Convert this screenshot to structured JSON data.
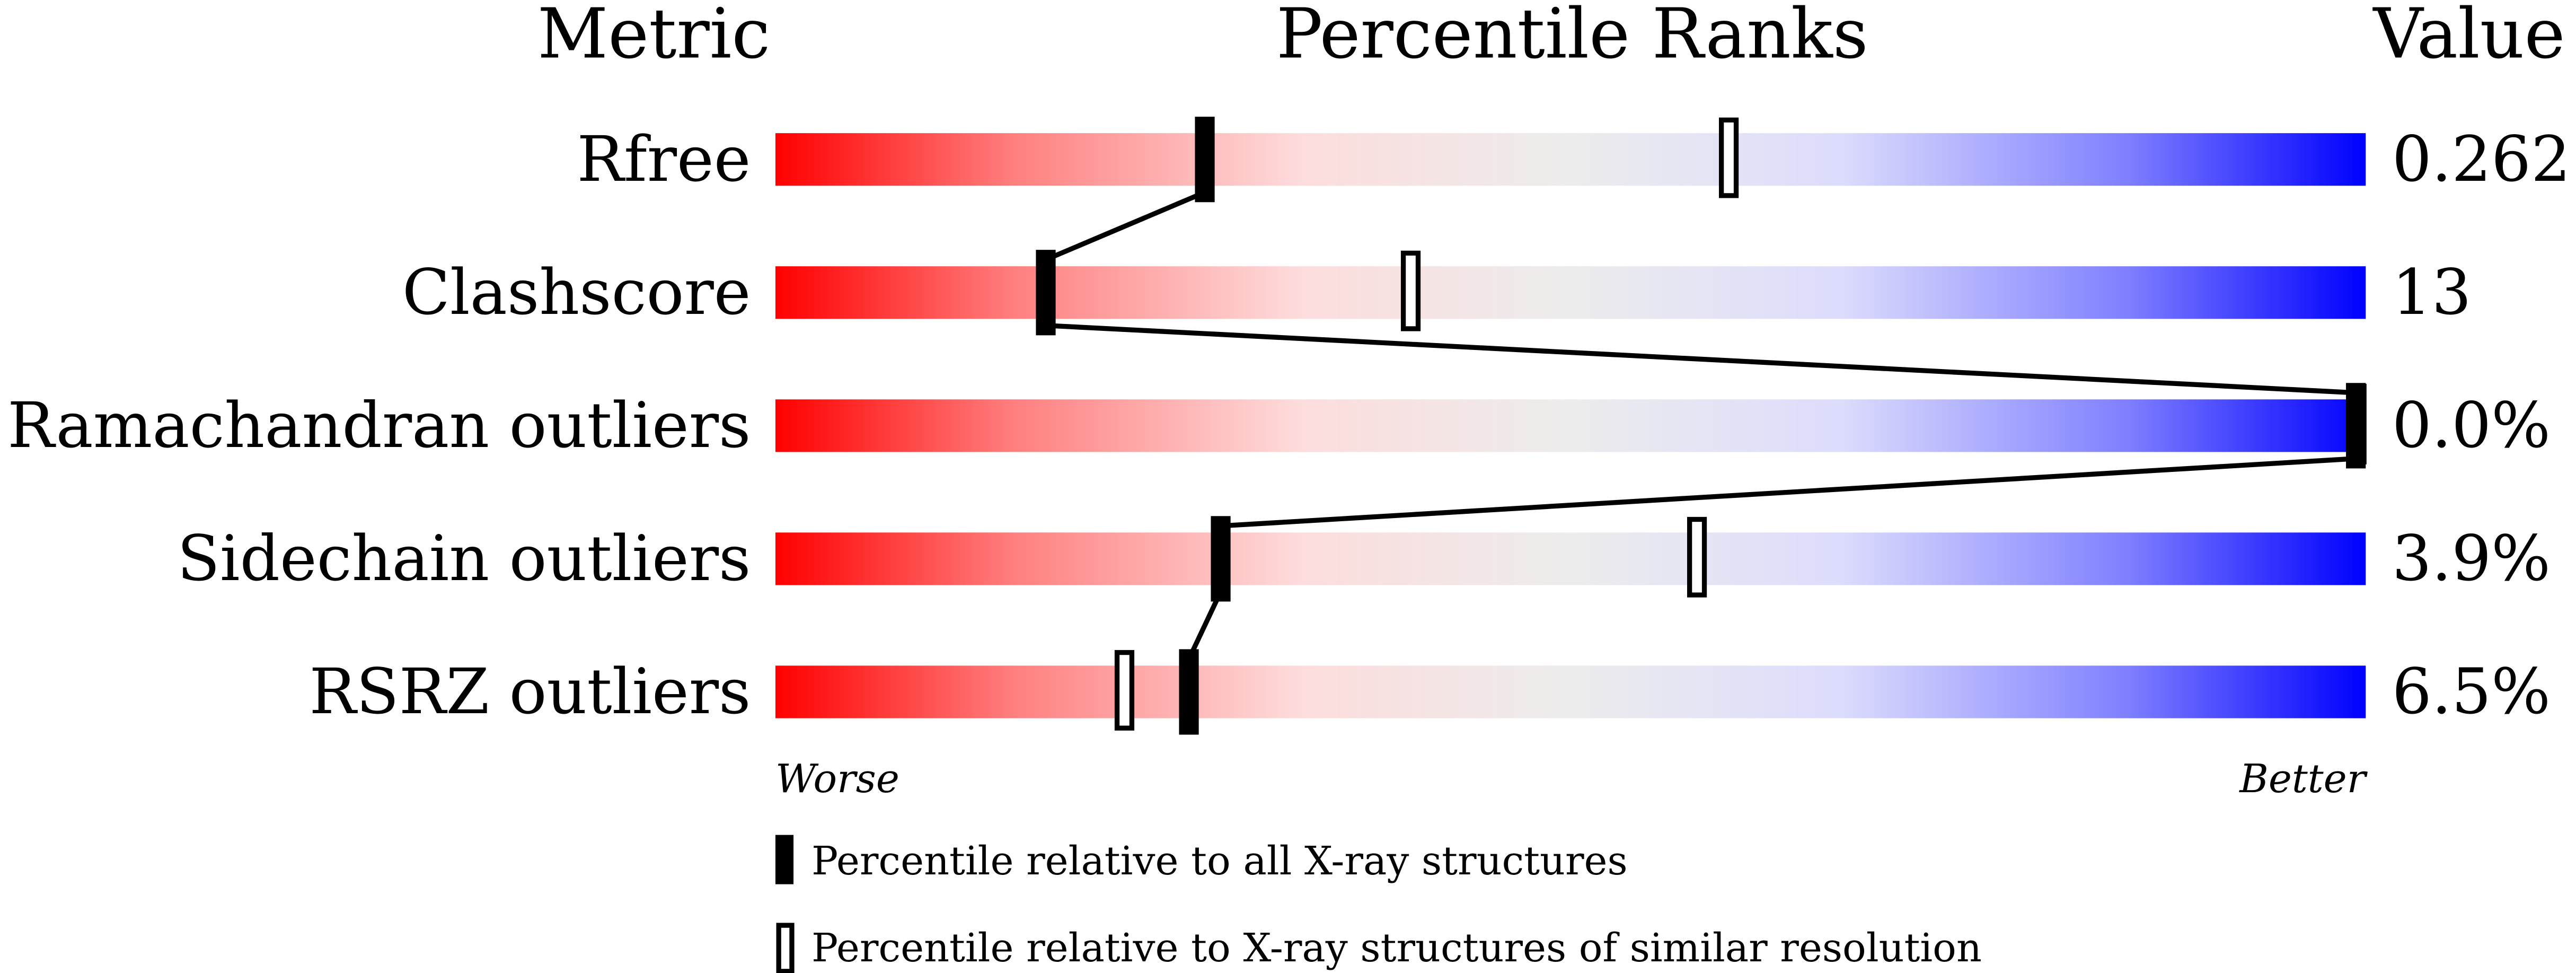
{
  "chart_data": {
    "type": "percentile-slider",
    "headers": {
      "metric": "Metric",
      "ranks": "Percentile Ranks",
      "value": "Value"
    },
    "axis": {
      "left_label": "Worse",
      "right_label": "Better",
      "range": [
        0,
        100
      ]
    },
    "rows": [
      {
        "metric": "Rfree",
        "value": "0.262",
        "percentile_all": 27,
        "percentile_similar": 60
      },
      {
        "metric": "Clashscore",
        "value": "13",
        "percentile_all": 17,
        "percentile_similar": 40
      },
      {
        "metric": "Ramachandran outliers",
        "value": "0.0%",
        "percentile_all": 100,
        "percentile_similar": 100
      },
      {
        "metric": "Sidechain outliers",
        "value": "3.9%",
        "percentile_all": 28,
        "percentile_similar": 58
      },
      {
        "metric": "RSRZ outliers",
        "value": "6.5%",
        "percentile_all": 26,
        "percentile_similar": 22
      }
    ],
    "legend": {
      "all": "Percentile relative to all X-ray structures",
      "similar": "Percentile relative to X-ray structures of similar resolution"
    },
    "colors": {
      "worse": "#ff0000",
      "middle": "#eeeeee",
      "better": "#0000ff",
      "marker": "#000000"
    }
  }
}
